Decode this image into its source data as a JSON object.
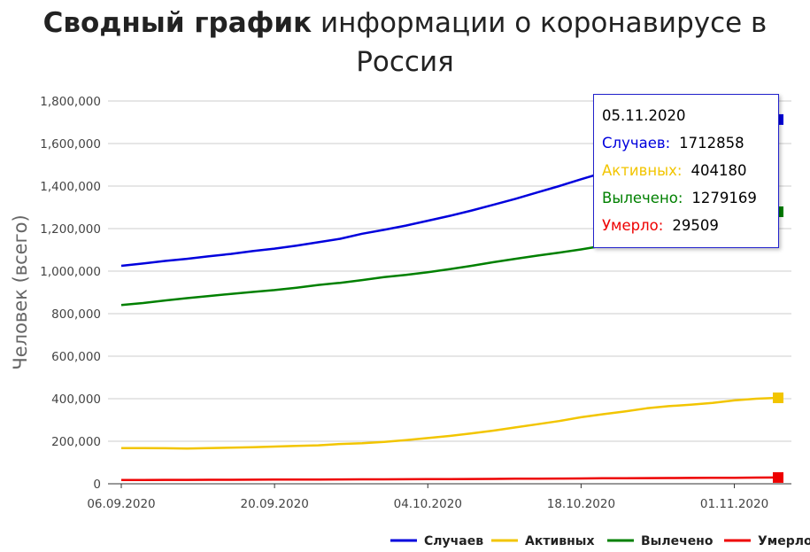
{
  "title": {
    "bold": "Сводный график",
    "rest": "информации о коронавирусе в Россия"
  },
  "tooltip": {
    "date": "05.11.2020",
    "rows": [
      {
        "label": "Случаев:",
        "value": "1712858",
        "color": "#0000dd"
      },
      {
        "label": "Активных:",
        "value": "404180",
        "color": "#f2c500"
      },
      {
        "label": "Вылечено:",
        "value": "1279169",
        "color": "#008000"
      },
      {
        "label": "Умерло:",
        "value": "29509",
        "color": "#ee0000"
      }
    ]
  },
  "chart_data": {
    "type": "line",
    "title": "Сводный график информации о коронавирусе в Россия",
    "xlabel": "",
    "ylabel": "Человек (всего)",
    "ylim": [
      0,
      1800000
    ],
    "yticks": [
      0,
      200000,
      400000,
      600000,
      800000,
      1000000,
      1200000,
      1400000,
      1600000,
      1800000
    ],
    "ytick_labels": [
      "0",
      "200,000",
      "400,000",
      "600,000",
      "800,000",
      "1,000,000",
      "1,200,000",
      "1,400,000",
      "1,600,000",
      "1,800,000"
    ],
    "xlim": [
      "06.09.2020",
      "05.11.2020"
    ],
    "xtick_labels": [
      "06.09.2020",
      "20.09.2020",
      "04.10.2020",
      "18.10.2020",
      "01.11.2020"
    ],
    "grid": true,
    "legend_position": "bottom-right",
    "x": [
      "06.09.2020",
      "08.09.2020",
      "10.09.2020",
      "12.09.2020",
      "14.09.2020",
      "16.09.2020",
      "18.09.2020",
      "20.09.2020",
      "22.09.2020",
      "24.09.2020",
      "26.09.2020",
      "28.09.2020",
      "30.09.2020",
      "02.10.2020",
      "04.10.2020",
      "06.10.2020",
      "08.10.2020",
      "10.10.2020",
      "12.10.2020",
      "14.10.2020",
      "16.10.2020",
      "18.10.2020",
      "20.10.2020",
      "22.10.2020",
      "24.10.2020",
      "26.10.2020",
      "28.10.2020",
      "30.10.2020",
      "01.11.2020",
      "03.11.2020",
      "05.11.2020"
    ],
    "series": [
      {
        "name": "Случаев",
        "color": "#0000dd",
        "values": [
          1025000,
          1036000,
          1048000,
          1058000,
          1070000,
          1081000,
          1094000,
          1106000,
          1120000,
          1136000,
          1152000,
          1176000,
          1194000,
          1214000,
          1237000,
          1260000,
          1285000,
          1312000,
          1340000,
          1370000,
          1400000,
          1432000,
          1463000,
          1497000,
          1531000,
          1562000,
          1595000,
          1629000,
          1655000,
          1684000,
          1712858
        ]
      },
      {
        "name": "Активных",
        "color": "#f2c500",
        "values": [
          168000,
          168000,
          167000,
          166000,
          168000,
          170000,
          172000,
          175000,
          178000,
          181000,
          187000,
          191000,
          197000,
          205000,
          215000,
          225000,
          237000,
          250000,
          265000,
          280000,
          295000,
          313000,
          327000,
          340000,
          355000,
          365000,
          372000,
          380000,
          392000,
          400000,
          404180
        ]
      },
      {
        "name": "Вылечено",
        "color": "#008000",
        "values": [
          841000,
          850000,
          862000,
          873000,
          883000,
          893000,
          902000,
          911000,
          922000,
          935000,
          945000,
          958000,
          972000,
          982000,
          995000,
          1009000,
          1025000,
          1042000,
          1058000,
          1073000,
          1087000,
          1102000,
          1119000,
          1137000,
          1155000,
          1173000,
          1193000,
          1213000,
          1231000,
          1255000,
          1279169
        ]
      },
      {
        "name": "Умерло",
        "color": "#ee0000",
        "values": [
          17900,
          18100,
          18300,
          18500,
          18700,
          18900,
          19200,
          19500,
          19700,
          20000,
          20300,
          20700,
          21000,
          21400,
          21800,
          22200,
          22600,
          23100,
          23600,
          24100,
          24600,
          25100,
          25700,
          26200,
          26700,
          27100,
          27500,
          28000,
          28500,
          29000,
          29509
        ]
      }
    ]
  }
}
